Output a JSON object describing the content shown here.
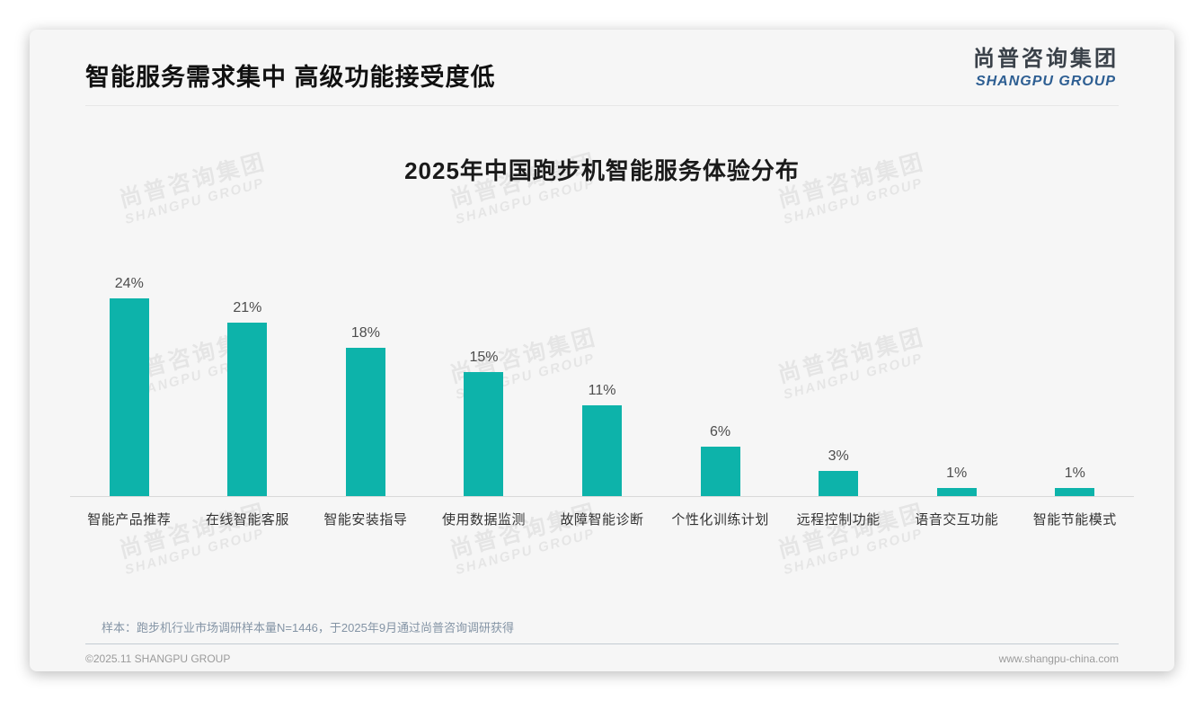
{
  "slide": {
    "heading": "智能服务需求集中 高级功能接受度低",
    "logo": {
      "cn": "尚普咨询集团",
      "en": "SHANGPU GROUP"
    },
    "watermark": {
      "line1": "尚普咨询集团",
      "line2": "SHANGPU GROUP"
    },
    "note": "样本：跑步机行业市场调研样本量N=1446，于2025年9月通过尚普咨询调研获得",
    "footer": {
      "copyright": "©2025.11 SHANGPU GROUP",
      "website": "www.shangpu-china.com"
    }
  },
  "chart_data": {
    "type": "bar",
    "title": "2025年中国跑步机智能服务体验分布",
    "categories": [
      "智能产品推荐",
      "在线智能客服",
      "智能安装指导",
      "使用数据监测",
      "故障智能诊断",
      "个性化训练计划",
      "远程控制功能",
      "语音交互功能",
      "智能节能模式"
    ],
    "values": [
      24,
      21,
      18,
      15,
      11,
      6,
      3,
      1,
      1
    ],
    "unit": "%",
    "value_label_position": "above",
    "bar_color": "#0db3aa",
    "xlabel": "",
    "ylabel": "",
    "ylim": [
      0,
      26
    ],
    "grid": false,
    "legend": false,
    "axis_line_color": "#d9d9d9"
  }
}
